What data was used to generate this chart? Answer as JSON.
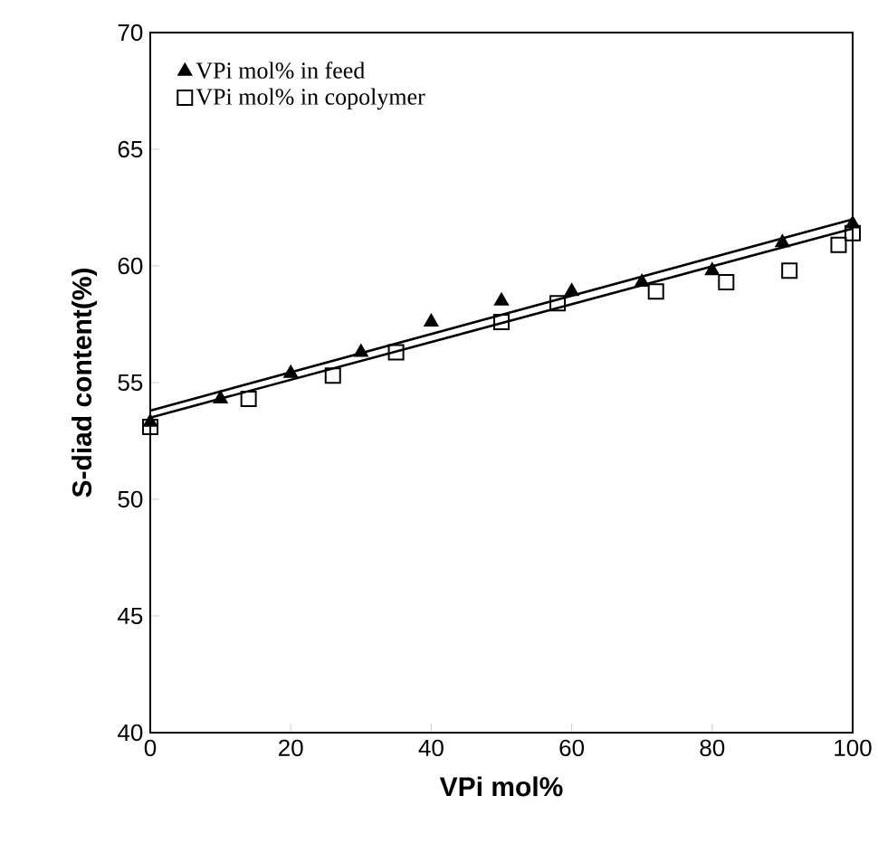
{
  "chart_data": {
    "type": "scatter",
    "xlabel": "VPi mol%",
    "ylabel": "S-diad content(%)",
    "xlim": [
      0,
      100
    ],
    "ylim": [
      40,
      70
    ],
    "xticks": [
      0,
      20,
      40,
      60,
      80,
      100
    ],
    "yticks": [
      40,
      45,
      50,
      55,
      60,
      65,
      70
    ],
    "legend": "top left",
    "grid": false,
    "series": [
      {
        "type": "line",
        "color": "#000000",
        "x": [
          0,
          100
        ],
        "values": [
          53.8,
          62.0
        ]
      },
      {
        "type": "line",
        "color": "#000000",
        "x": [
          0,
          100
        ],
        "values": [
          53.5,
          61.6
        ]
      },
      {
        "name": "VPi mol% in feed",
        "color": "#000000",
        "marker": "triangle",
        "x": [
          0,
          10,
          20,
          30,
          40,
          50,
          60,
          70,
          80,
          90,
          100
        ],
        "values": [
          53.3,
          54.3,
          55.4,
          56.3,
          57.6,
          58.5,
          58.9,
          59.3,
          59.8,
          61.0,
          61.8
        ]
      },
      {
        "name": "VPi mol% in copolymer",
        "color": "#000000",
        "marker": "square",
        "x": [
          0,
          14,
          26,
          35,
          50,
          58,
          72,
          82,
          91,
          98,
          100
        ],
        "values": [
          53.1,
          54.3,
          55.3,
          56.3,
          57.6,
          58.4,
          58.9,
          59.3,
          59.8,
          60.9,
          61.4
        ]
      }
    ]
  }
}
